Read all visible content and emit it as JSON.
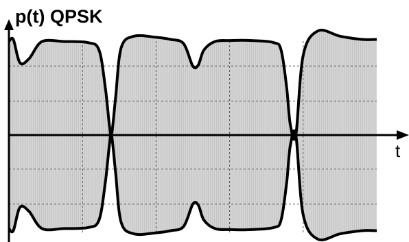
{
  "chart_data": {
    "type": "area",
    "title": "",
    "ylabel": "p(t) QPSK",
    "xlabel": "t",
    "xlim": [
      0,
      1
    ],
    "ylim": [
      -1,
      1
    ],
    "grid": true,
    "series": [
      {
        "values_x": [
          0,
          0.012,
          0.03,
          0.055,
          0.09,
          0.15,
          0.215,
          0.245,
          0.262,
          0.273,
          0.279,
          0.29,
          0.305,
          0.34,
          0.4,
          0.44,
          0.475,
          0.5,
          0.515,
          0.53,
          0.56,
          0.6,
          0.66,
          0.72,
          0.74,
          0.755,
          0.765,
          0.78,
          0.8,
          0.84,
          0.9,
          0.96,
          1.0
        ],
        "values_y": [
          0.88,
          0.9,
          0.68,
          0.72,
          0.88,
          0.88,
          0.87,
          0.8,
          0.45,
          0.1,
          0.0,
          0.35,
          0.82,
          0.93,
          0.92,
          0.9,
          0.86,
          0.65,
          0.66,
          0.8,
          0.88,
          0.89,
          0.89,
          0.87,
          0.8,
          0.45,
          0.1,
          0.0,
          0.75,
          0.98,
          0.93,
          0.9,
          0.9
        ]
      }
    ]
  }
}
